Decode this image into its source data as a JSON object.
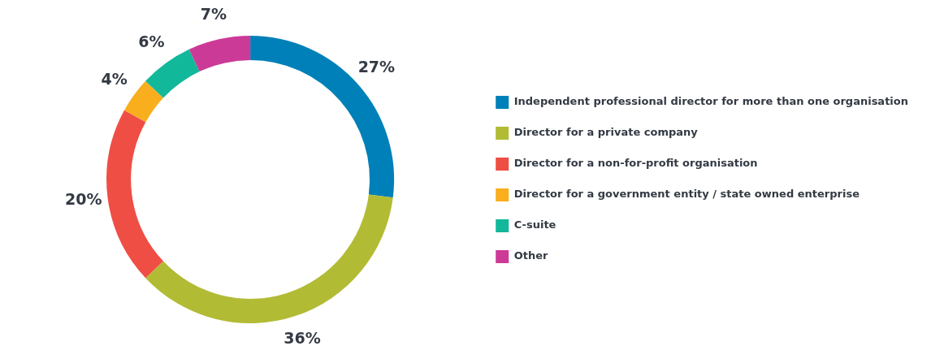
{
  "chart_data": {
    "type": "donut",
    "categories": [
      "Independent professional director for more than one organisation",
      "Director for a private company",
      "Director for a non-for-profit organisation",
      "Director for a government entity / state owned enterprise",
      "C-suite",
      "Other"
    ],
    "values": [
      27,
      36,
      20,
      4,
      6,
      7
    ],
    "colors": [
      "#0080b8",
      "#b2bb34",
      "#ef4e45",
      "#f9ae1e",
      "#12b89a",
      "#cc3a97"
    ],
    "value_labels": [
      "27%",
      "36%",
      "20%",
      "4%",
      "6%",
      "7%"
    ],
    "legend": "right"
  }
}
